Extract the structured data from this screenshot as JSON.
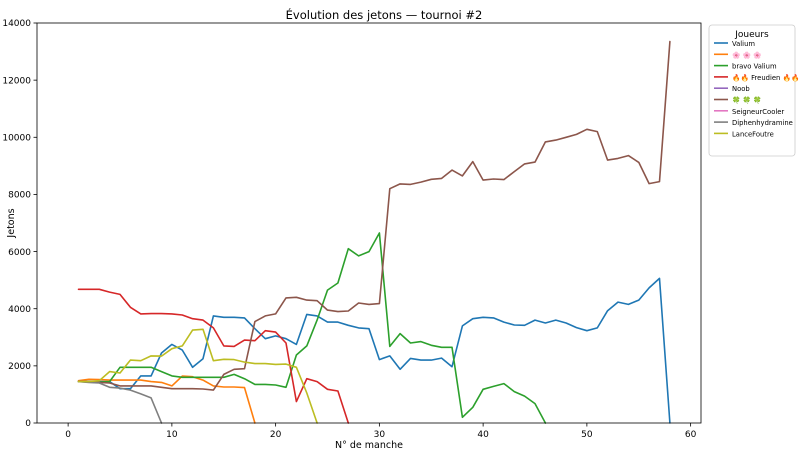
{
  "chart_data": {
    "type": "line",
    "title": "Évolution des jetons — tournoi #2",
    "xlabel": "N° de manche",
    "ylabel": "Jetons",
    "xlim": [
      -3,
      61
    ],
    "ylim": [
      0,
      14000
    ],
    "xticks": [
      0,
      10,
      20,
      30,
      40,
      50,
      60
    ],
    "yticks": [
      0,
      2000,
      4000,
      6000,
      8000,
      10000,
      12000,
      14000
    ],
    "grid": false,
    "legend": {
      "title": "Joueurs",
      "position": "outside-right"
    },
    "series": [
      {
        "name": "Valium",
        "color": "#1f77b4",
        "x": [
          1,
          2,
          3,
          4,
          5,
          6,
          7,
          8,
          9,
          10,
          11,
          12,
          13,
          14,
          15,
          16,
          17,
          18,
          19,
          20,
          21,
          22,
          23,
          24,
          25,
          26,
          27,
          28,
          29,
          30,
          31,
          32,
          33,
          34,
          35,
          36,
          37,
          38,
          39,
          40,
          41,
          42,
          43,
          44,
          45,
          46,
          47,
          48,
          49,
          50,
          51,
          52,
          53,
          54,
          55,
          56,
          57,
          58
        ],
        "y": [
          1450,
          1450,
          1450,
          1450,
          1200,
          1200,
          1650,
          1650,
          2450,
          2750,
          2550,
          1950,
          2250,
          3750,
          3700,
          3700,
          3680,
          3300,
          2950,
          3050,
          2950,
          2750,
          3800,
          3750,
          3530,
          3530,
          3420,
          3330,
          3300,
          2220,
          2350,
          1880,
          2260,
          2200,
          2200,
          2270,
          1970,
          3400,
          3650,
          3700,
          3680,
          3530,
          3430,
          3420,
          3600,
          3500,
          3600,
          3500,
          3340,
          3230,
          3330,
          3930,
          4230,
          4150,
          4300,
          4730,
          5060,
          0
        ]
      },
      {
        "name": "🌸 🌸 🌸",
        "color": "#ff7f0e",
        "x": [
          1,
          2,
          3,
          4,
          5,
          6,
          7,
          8,
          9,
          10,
          11,
          12,
          13,
          14,
          15,
          16,
          17,
          18
        ],
        "y": [
          1480,
          1530,
          1520,
          1500,
          1500,
          1500,
          1500,
          1450,
          1420,
          1300,
          1640,
          1620,
          1500,
          1300,
          1260,
          1260,
          1240,
          0
        ]
      },
      {
        "name": "bravo Valium",
        "color": "#2ca02c",
        "x": [
          1,
          2,
          3,
          4,
          5,
          6,
          7,
          8,
          9,
          10,
          11,
          12,
          13,
          14,
          15,
          16,
          17,
          18,
          19,
          20,
          21,
          22,
          23,
          24,
          25,
          26,
          27,
          28,
          29,
          30,
          31,
          32,
          33,
          34,
          35,
          36,
          37,
          38,
          39,
          40,
          41,
          42,
          43,
          44,
          45,
          46
        ],
        "y": [
          1450,
          1430,
          1430,
          1450,
          1950,
          1950,
          1950,
          1950,
          1800,
          1650,
          1600,
          1600,
          1600,
          1600,
          1600,
          1700,
          1550,
          1350,
          1350,
          1330,
          1250,
          2380,
          2700,
          3600,
          4650,
          4900,
          6100,
          5850,
          6000,
          6650,
          2680,
          3130,
          2800,
          2850,
          2720,
          2650,
          2650,
          200,
          550,
          1180,
          1280,
          1380,
          1100,
          940,
          680,
          0
        ]
      },
      {
        "name": "🔥🔥 Freudien 🔥🔥",
        "color": "#d62728",
        "x": [
          1,
          2,
          3,
          4,
          5,
          6,
          7,
          8,
          9,
          10,
          11,
          12,
          13,
          14,
          15,
          16,
          17,
          18,
          19,
          20,
          21,
          22,
          23,
          24,
          25,
          26,
          27
        ],
        "y": [
          4680,
          4680,
          4680,
          4580,
          4500,
          4050,
          3820,
          3830,
          3830,
          3820,
          3780,
          3650,
          3600,
          3330,
          2700,
          2680,
          2900,
          2880,
          3230,
          3180,
          2800,
          750,
          1550,
          1450,
          1180,
          1120,
          0
        ]
      },
      {
        "name": "Noob",
        "color": "#9467bd",
        "x": [],
        "y": []
      },
      {
        "name": "🍀 🍀 🍀",
        "color": "#8c564b",
        "x": [
          1,
          2,
          3,
          4,
          5,
          6,
          7,
          8,
          9,
          10,
          11,
          12,
          13,
          14,
          15,
          16,
          17,
          18,
          19,
          20,
          21,
          22,
          23,
          24,
          25,
          26,
          27,
          28,
          29,
          30,
          31,
          32,
          33,
          34,
          35,
          36,
          37,
          38,
          39,
          40,
          41,
          42,
          43,
          44,
          45,
          46,
          47,
          48,
          49,
          50,
          51,
          52,
          53,
          54,
          55,
          56,
          57,
          58
        ],
        "y": [
          1450,
          1450,
          1420,
          1400,
          1300,
          1300,
          1300,
          1300,
          1250,
          1200,
          1200,
          1200,
          1190,
          1150,
          1700,
          1880,
          1900,
          3550,
          3750,
          3820,
          4380,
          4400,
          4300,
          4280,
          3950,
          3900,
          3920,
          4200,
          4150,
          4180,
          8200,
          8370,
          8350,
          8430,
          8530,
          8560,
          8850,
          8650,
          9150,
          8500,
          8540,
          8520,
          8800,
          9070,
          9130,
          9840,
          9900,
          10000,
          10100,
          10280,
          10200,
          9200,
          9260,
          9360,
          9120,
          8380,
          8450,
          13350
        ]
      },
      {
        "name": "SeigneurCooler",
        "color": "#e377c2",
        "x": [],
        "y": []
      },
      {
        "name": "Diphenhydramine",
        "color": "#7f7f7f",
        "x": [
          1,
          2,
          3,
          4,
          5,
          6,
          7,
          8,
          9
        ],
        "y": [
          1450,
          1420,
          1400,
          1250,
          1220,
          1150,
          1020,
          880,
          0
        ]
      },
      {
        "name": "LanceFoutre",
        "color": "#bcbd22",
        "x": [
          1,
          2,
          3,
          4,
          5,
          6,
          7,
          8,
          9,
          10,
          11,
          12,
          13,
          14,
          15,
          16,
          17,
          18,
          19,
          20,
          21,
          22,
          23,
          24
        ],
        "y": [
          1450,
          1450,
          1480,
          1800,
          1750,
          2200,
          2180,
          2350,
          2340,
          2600,
          2700,
          3250,
          3280,
          2180,
          2230,
          2220,
          2130,
          2080,
          2080,
          2050,
          2060,
          1950,
          1050,
          0
        ]
      }
    ]
  }
}
